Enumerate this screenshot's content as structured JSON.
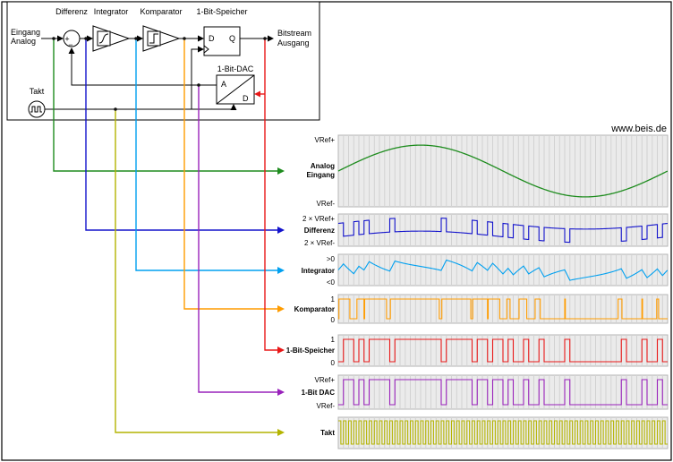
{
  "watermark": "www.beis.de",
  "block_diagram": {
    "input_line1": "Eingang",
    "input_line2": "Analog",
    "sum_plus": "+",
    "sum_minus": "−",
    "label_differenz": "Differenz",
    "label_integrator": "Integrator",
    "label_komparator": "Komparator",
    "label_speicher": "1-Bit-Speicher",
    "label_dac": "1-Bit-DAC",
    "label_takt": "Takt",
    "output_line1": "Bitstream",
    "output_line2": "Ausgang",
    "ff_d": "D",
    "ff_q": "Q",
    "dac_a": "A",
    "dac_d": "D"
  },
  "chart_data": {
    "type": "line",
    "description": "First-order delta-sigma modulator: input sine (one period over 64 clocks) and derived signals Differenz = Eingang - DAC, Integrator = integral of Differenz, Komparator = sign of Integrator, 1-Bit-Speicher = Komparator latched on Takt, 1-Bit-DAC = Speicher mapped to ±VRef, Takt = clock.",
    "clocks": 64,
    "substeps_per_clock": 8,
    "input_amplitude_vref": 0.85,
    "integrator_gain_per_clock": 0.5,
    "rows": [
      {
        "id": "analog",
        "name": "Analog",
        "name2": "Eingang",
        "top_label": "VRef+",
        "bottom_label": "VRef-",
        "color": "#1e8c1e",
        "signal": "sine"
      },
      {
        "id": "differenz",
        "name": "Differenz",
        "top_label": "2 × VRef+",
        "bottom_label": "2 × VRef-",
        "color": "#1313cc",
        "signal": "input_minus_dac"
      },
      {
        "id": "integrator",
        "name": "Integrator",
        "top_label": ">0",
        "bottom_label": "<0",
        "color": "#00a0f0",
        "signal": "integral_of_differenz"
      },
      {
        "id": "komparator",
        "name": "Komparator",
        "top_label": "1",
        "bottom_label": "0",
        "color": "#ff9c00",
        "signal": "sign_of_integrator"
      },
      {
        "id": "speicher",
        "name": "1-Bit-Speicher",
        "top_label": "1",
        "bottom_label": "0",
        "color": "#e81818",
        "signal": "komparator_latched_on_clock"
      },
      {
        "id": "dac",
        "name": "1-Bit DAC",
        "top_label": "VRef+",
        "bottom_label": "VRef-",
        "color": "#9922bb",
        "signal": "speicher_to_vref"
      },
      {
        "id": "takt",
        "name": "Takt",
        "top_label": "",
        "bottom_label": "",
        "color": "#b4b400",
        "signal": "clock"
      }
    ]
  }
}
